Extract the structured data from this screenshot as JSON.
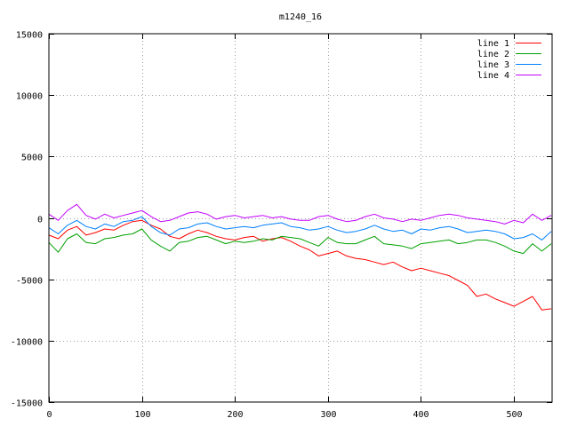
{
  "chart_data": {
    "type": "line",
    "title": "m1240_16",
    "xlabel": "",
    "ylabel": "",
    "xlim": [
      0,
      541
    ],
    "ylim": [
      -15000,
      15000
    ],
    "xticks": [
      0,
      100,
      200,
      300,
      400,
      500
    ],
    "yticks": [
      -15000,
      -10000,
      -5000,
      0,
      5000,
      10000,
      15000
    ],
    "grid": true,
    "legend_position": "top-right",
    "series": [
      {
        "name": "line 1",
        "color": "#ff0000",
        "x": [
          0,
          10,
          20,
          30,
          40,
          50,
          60,
          70,
          80,
          90,
          100,
          110,
          120,
          130,
          140,
          150,
          160,
          170,
          180,
          190,
          200,
          210,
          220,
          230,
          240,
          250,
          260,
          270,
          280,
          290,
          300,
          310,
          320,
          330,
          340,
          350,
          360,
          370,
          380,
          390,
          400,
          410,
          420,
          430,
          440,
          450,
          460,
          470,
          480,
          490,
          500,
          510,
          520,
          530,
          540
        ],
        "y": [
          -1400,
          -1700,
          -1000,
          -700,
          -1400,
          -1200,
          -900,
          -1000,
          -600,
          -300,
          -200,
          -600,
          -900,
          -1500,
          -1700,
          -1300,
          -1000,
          -1200,
          -1500,
          -1700,
          -1800,
          -1600,
          -1500,
          -1900,
          -1700,
          -1600,
          -1900,
          -2300,
          -2600,
          -3100,
          -2900,
          -2700,
          -3100,
          -3300,
          -3400,
          -3600,
          -3800,
          -3600,
          -4000,
          -4300,
          -4100,
          -4300,
          -4500,
          -4700,
          -5100,
          -5500,
          -6400,
          -6200,
          -6600,
          -6900,
          -7200,
          -6800,
          -6400,
          -7500,
          -7400
        ]
      },
      {
        "name": "line 2",
        "color": "#00a000",
        "x": [
          0,
          10,
          20,
          30,
          40,
          50,
          60,
          70,
          80,
          90,
          100,
          110,
          120,
          130,
          140,
          150,
          160,
          170,
          180,
          190,
          200,
          210,
          220,
          230,
          240,
          250,
          260,
          270,
          280,
          290,
          300,
          310,
          320,
          330,
          340,
          350,
          360,
          370,
          380,
          390,
          400,
          410,
          420,
          430,
          440,
          450,
          460,
          470,
          480,
          490,
          500,
          510,
          520,
          530,
          540
        ],
        "y": [
          -2000,
          -2800,
          -1700,
          -1300,
          -2000,
          -2100,
          -1700,
          -1600,
          -1400,
          -1300,
          -900,
          -1800,
          -2300,
          -2700,
          -2000,
          -1900,
          -1600,
          -1500,
          -1800,
          -2100,
          -1900,
          -2000,
          -1900,
          -1700,
          -1800,
          -1500,
          -1600,
          -1700,
          -2000,
          -2300,
          -1600,
          -2000,
          -2100,
          -2100,
          -1800,
          -1500,
          -2100,
          -2200,
          -2300,
          -2500,
          -2100,
          -2000,
          -1900,
          -1800,
          -2100,
          -2000,
          -1800,
          -1800,
          -2000,
          -2300,
          -2700,
          -2900,
          -2100,
          -2700,
          -2100
        ]
      },
      {
        "name": "line 3",
        "color": "#0080ff",
        "x": [
          0,
          10,
          20,
          30,
          40,
          50,
          60,
          70,
          80,
          90,
          100,
          110,
          120,
          130,
          140,
          150,
          160,
          170,
          180,
          190,
          200,
          210,
          220,
          230,
          240,
          250,
          260,
          270,
          280,
          290,
          300,
          310,
          320,
          330,
          340,
          350,
          360,
          370,
          380,
          390,
          400,
          410,
          420,
          430,
          440,
          450,
          460,
          470,
          480,
          490,
          500,
          510,
          520,
          530,
          540
        ],
        "y": [
          -800,
          -1300,
          -600,
          -200,
          -700,
          -900,
          -500,
          -700,
          -300,
          -200,
          100,
          -700,
          -1200,
          -1400,
          -900,
          -800,
          -500,
          -400,
          -700,
          -900,
          -800,
          -700,
          -800,
          -600,
          -500,
          -400,
          -700,
          -800,
          -1000,
          -900,
          -700,
          -1000,
          -1200,
          -1100,
          -900,
          -600,
          -900,
          -1100,
          -1000,
          -1300,
          -900,
          -1000,
          -800,
          -700,
          -900,
          -1200,
          -1100,
          -1000,
          -1100,
          -1300,
          -1700,
          -1600,
          -1300,
          -1800,
          -1100
        ]
      },
      {
        "name": "line 4",
        "color": "#c000ff",
        "x": [
          0,
          10,
          20,
          30,
          40,
          50,
          60,
          70,
          80,
          90,
          100,
          110,
          120,
          130,
          140,
          150,
          160,
          170,
          180,
          190,
          200,
          210,
          220,
          230,
          240,
          250,
          260,
          270,
          280,
          290,
          300,
          310,
          320,
          330,
          340,
          350,
          360,
          370,
          380,
          390,
          400,
          410,
          420,
          430,
          440,
          450,
          460,
          470,
          480,
          490,
          500,
          510,
          520,
          530,
          540
        ],
        "y": [
          300,
          -200,
          600,
          1100,
          200,
          -100,
          300,
          0,
          200,
          400,
          600,
          100,
          -300,
          -200,
          100,
          400,
          500,
          300,
          -100,
          100,
          200,
          0,
          100,
          200,
          0,
          100,
          -100,
          -200,
          -200,
          100,
          200,
          -100,
          -300,
          -200,
          100,
          300,
          0,
          -100,
          -300,
          -100,
          -200,
          0,
          200,
          300,
          200,
          0,
          -100,
          -200,
          -300,
          -500,
          -200,
          -400,
          300,
          -200,
          200
        ]
      }
    ]
  }
}
